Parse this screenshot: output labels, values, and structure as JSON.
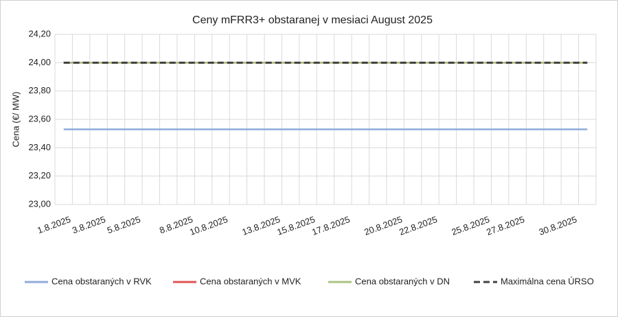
{
  "chart_data": {
    "type": "line",
    "title": "Ceny mFRR3+ obstaranej v mesiaci August 2025",
    "y_label": "Cena (€/ MW)",
    "categories": [
      "1.8.2025",
      null,
      "3.8.2025",
      null,
      "5.8.2025",
      null,
      null,
      "8.8.2025",
      null,
      "10.8.2025",
      null,
      null,
      "13.8.2025",
      null,
      "15.8.2025",
      null,
      "17.8.2025",
      null,
      null,
      "20.8.2025",
      null,
      "22.8.2025",
      null,
      null,
      "25.8.2025",
      null,
      "27.8.2025",
      null,
      null,
      "30.8.2025",
      null
    ],
    "series": [
      {
        "name": "Cena obstaraných v RVK",
        "color": "#8eaadb",
        "dash": false,
        "values": [
          23.53,
          23.53,
          23.53,
          23.53,
          23.53,
          23.53,
          23.53,
          23.53,
          23.53,
          23.53,
          23.53,
          23.53,
          23.53,
          23.53,
          23.53,
          23.53,
          23.53,
          23.53,
          23.53,
          23.53,
          23.53,
          23.53,
          23.53,
          23.53,
          23.53,
          23.53,
          23.53,
          23.53,
          23.53,
          23.53,
          23.53
        ]
      },
      {
        "name": "Cena obstaraných v MVK",
        "color": "#e05555",
        "dash": false,
        "values": [
          24,
          24,
          24,
          24,
          24,
          24,
          24,
          24,
          24,
          24,
          24,
          24,
          24,
          24,
          24,
          24,
          24,
          24,
          24,
          24,
          24,
          24,
          24,
          24,
          24,
          24,
          24,
          24,
          24,
          24,
          24
        ]
      },
      {
        "name": "Cena obstaraných v DN",
        "color": "#a9c47f",
        "dash": false,
        "values": [
          24,
          24,
          24,
          24,
          24,
          24,
          24,
          24,
          24,
          24,
          24,
          24,
          24,
          24,
          24,
          24,
          24,
          24,
          24,
          24,
          24,
          24,
          24,
          24,
          24,
          24,
          24,
          24,
          24,
          24,
          24
        ]
      },
      {
        "name": "Maximálna cena ÚRSO",
        "color": "#404040",
        "dash": true,
        "values": [
          24,
          24,
          24,
          24,
          24,
          24,
          24,
          24,
          24,
          24,
          24,
          24,
          24,
          24,
          24,
          24,
          24,
          24,
          24,
          24,
          24,
          24,
          24,
          24,
          24,
          24,
          24,
          24,
          24,
          24,
          24
        ]
      }
    ],
    "ylim": [
      23,
      24.2
    ],
    "yticks": [
      {
        "value": 23,
        "label": "23,00"
      },
      {
        "value": 23.2,
        "label": "23,20"
      },
      {
        "value": 23.4,
        "label": "23,40"
      },
      {
        "value": 23.6,
        "label": "23,60"
      },
      {
        "value": 23.8,
        "label": "23,80"
      },
      {
        "value": 24,
        "label": "24,00"
      },
      {
        "value": 24.2,
        "label": "24,20"
      }
    ],
    "grid": true,
    "legend": "bottom"
  }
}
